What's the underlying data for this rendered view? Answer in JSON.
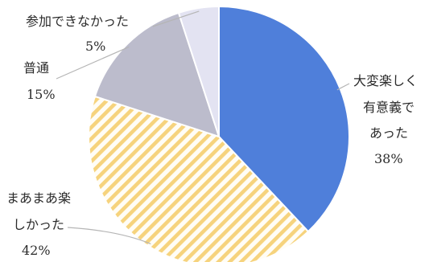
{
  "chart_data": {
    "type": "pie",
    "categories": [
      "大変楽しく有意義であった",
      "まあまあ楽しかった",
      "普通",
      "参加できなかった"
    ],
    "values": [
      38,
      42,
      15,
      5
    ],
    "slices": [
      {
        "label_lines": [
          "大変楽しく",
          "有意義で",
          "あった"
        ],
        "percent_label": "38%",
        "value": 38,
        "color": "#4f7fda",
        "pattern": "solid"
      },
      {
        "label_lines": [
          "まあまあ楽",
          "しかった"
        ],
        "percent_label": "42%",
        "value": 42,
        "color": "#f6d37d",
        "pattern": "diagonal-hatch"
      },
      {
        "label_lines": [
          "普通"
        ],
        "percent_label": "15%",
        "value": 15,
        "color": "#bcbccc",
        "pattern": "solid"
      },
      {
        "label_lines": [
          "参加できなかった"
        ],
        "percent_label": "5%",
        "value": 5,
        "color": "#e3e3f2",
        "pattern": "solid"
      }
    ],
    "start_angle_position": "top",
    "direction": "clockwise",
    "colors": {
      "leader_line": "#b5b5b5",
      "slice_edge": "#ffffff",
      "text": "#2b2b2b"
    }
  }
}
